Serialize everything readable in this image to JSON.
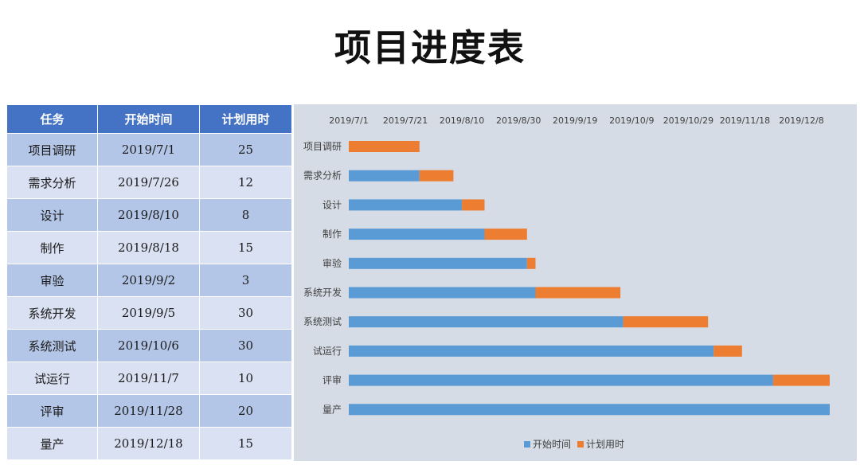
{
  "page": {
    "title": "项目进度表"
  },
  "table": {
    "headers": [
      "任务",
      "开始时间",
      "计划用时"
    ],
    "rows": [
      [
        "项目调研",
        "2019/7/1",
        "25"
      ],
      [
        "需求分析",
        "2019/7/26",
        "12"
      ],
      [
        "设计",
        "2019/8/10",
        "8"
      ],
      [
        "制作",
        "2019/8/18",
        "15"
      ],
      [
        "审验",
        "2019/9/2",
        "3"
      ],
      [
        "系统开发",
        "2019/9/5",
        "30"
      ],
      [
        "系统测试",
        "2019/10/6",
        "30"
      ],
      [
        "试运行",
        "2019/11/7",
        "10"
      ],
      [
        "评审",
        "2019/11/28",
        "20"
      ],
      [
        "量产",
        "2019/12/18",
        "15"
      ]
    ]
  },
  "chart_data": {
    "type": "bar",
    "orientation": "horizontal",
    "stacked": true,
    "categories": [
      "项目调研",
      "需求分析",
      "设计",
      "制作",
      "审验",
      "系统开发",
      "系统测试",
      "试运行",
      "评审",
      "量产"
    ],
    "series": [
      {
        "name": "开始时间",
        "color": "#5b9bd5",
        "role": "offset",
        "values": [
          "2019/7/1",
          "2019/7/26",
          "2019/8/10",
          "2019/8/18",
          "2019/9/2",
          "2019/9/5",
          "2019/10/6",
          "2019/11/7",
          "2019/11/28",
          "2019/12/18"
        ]
      },
      {
        "name": "计划用时",
        "color": "#ed7d31",
        "role": "duration",
        "values": [
          25,
          12,
          8,
          15,
          3,
          30,
          30,
          10,
          20,
          15
        ]
      }
    ],
    "x_axis": {
      "type": "date",
      "position": "top",
      "range": [
        "2019/7/1",
        "2019/12/18"
      ],
      "tick_labels": [
        "2019/7/1",
        "2019/7/21",
        "2019/8/10",
        "2019/8/30",
        "2019/9/19",
        "2019/10/9",
        "2019/10/29",
        "2019/11/18",
        "2019/12/8"
      ]
    },
    "legend": {
      "position": "bottom",
      "entries": [
        "开始时间",
        "计划用时"
      ]
    },
    "grid": false,
    "background": "#d6dce5"
  }
}
